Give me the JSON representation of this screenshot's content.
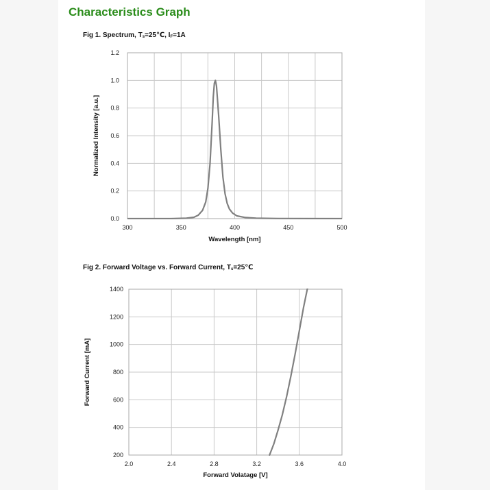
{
  "header": {
    "title": "Characteristics Graph"
  },
  "figures": {
    "fig1": {
      "title_main": "Fig 1. Spectrum, T",
      "title_sub1": "s",
      "title_mid": "=25℃, I",
      "title_sub2": "F",
      "title_end": "=1A"
    },
    "fig2": {
      "title_main": "Fig 2. Forward Voltage vs. Forward Current, T",
      "title_sub1": "s",
      "title_end": "=25℃"
    }
  },
  "colors": {
    "heading": "#2a8c1a",
    "curve": "#808080",
    "grid": "#c8c8c8"
  },
  "chart_data": [
    {
      "type": "line",
      "title": "Fig 1. Spectrum, Ts=25℃, IF=1A",
      "xlabel": "Wavelength [nm]",
      "ylabel": "Normalized Intensity [a.u.]",
      "xlim": [
        300,
        500
      ],
      "ylim": [
        0.0,
        1.2
      ],
      "x_ticks": [
        "300",
        "350",
        "400",
        "450",
        "500"
      ],
      "y_ticks": [
        "0.0",
        "0.2",
        "0.4",
        "0.6",
        "0.8",
        "1.0",
        "1.2"
      ],
      "x_grid_step": 25,
      "y_grid_step": 0.2,
      "grid": true,
      "series": [
        {
          "x": [
            300,
            340,
            355,
            362,
            366,
            370,
            373,
            375,
            377,
            379,
            380,
            381,
            382,
            383,
            385,
            387,
            389,
            391,
            393,
            395,
            398,
            402,
            410,
            420,
            440,
            500
          ],
          "y": [
            0.0,
            0.0,
            0.003,
            0.01,
            0.025,
            0.06,
            0.12,
            0.22,
            0.4,
            0.7,
            0.88,
            0.98,
            1.0,
            0.96,
            0.75,
            0.5,
            0.3,
            0.18,
            0.11,
            0.07,
            0.04,
            0.02,
            0.008,
            0.003,
            0.001,
            0.0
          ]
        }
      ]
    },
    {
      "type": "line",
      "title": "Fig 2. Forward Voltage vs. Forward Current, Ts=25℃",
      "xlabel": "Forward  Volatage [V]",
      "ylabel": "Forward Current [mA]",
      "xlim": [
        2.0,
        4.0
      ],
      "ylim": [
        200,
        1400
      ],
      "x_ticks": [
        "2.0",
        "2.4",
        "2.8",
        "3.2",
        "3.6",
        "4.0"
      ],
      "y_ticks": [
        "200",
        "400",
        "600",
        "800",
        "1000",
        "1200",
        "1400"
      ],
      "x_grid_step": 0.4,
      "y_grid_step": 200,
      "grid": true,
      "series": [
        {
          "x": [
            3.32,
            3.36,
            3.4,
            3.44,
            3.48,
            3.52,
            3.56,
            3.6,
            3.64,
            3.68
          ],
          "y": [
            200,
            280,
            380,
            490,
            620,
            770,
            930,
            1100,
            1270,
            1420
          ]
        }
      ]
    }
  ]
}
